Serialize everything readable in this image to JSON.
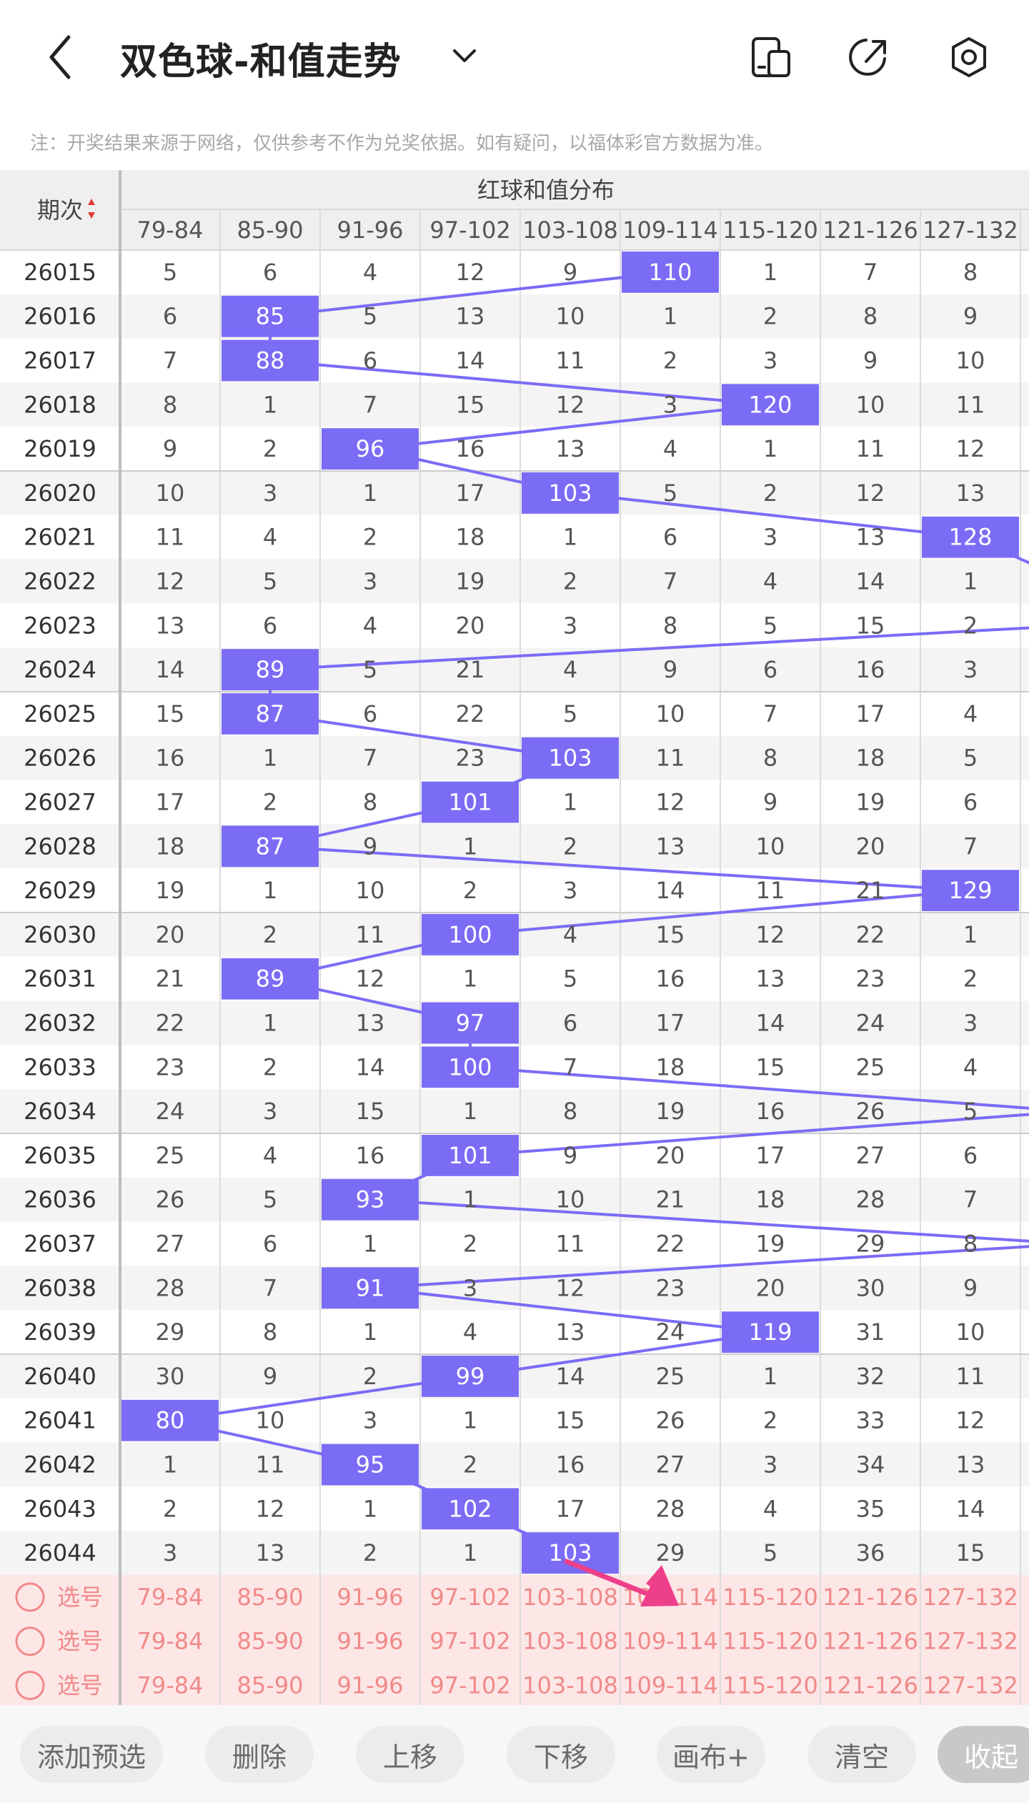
{
  "header": {
    "title": "双色球-和值走势"
  },
  "notice": "注：开奖结果来源于网络，仅供参考不作为兑奖依据。如有疑问，以福体彩官方数据为准。",
  "table": {
    "group_header": "红球和值分布",
    "period_header": "期次",
    "columns": [
      "79-84",
      "85-90",
      "91-96",
      "97-102",
      "103-108",
      "109-114",
      "115-120",
      "121-126",
      "127-132"
    ],
    "rows": [
      {
        "period": "26015",
        "hit": 5,
        "values": [
          5,
          6,
          4,
          12,
          9,
          110,
          1,
          7,
          8
        ]
      },
      {
        "period": "26016",
        "hit": 1,
        "values": [
          6,
          85,
          5,
          13,
          10,
          1,
          2,
          8,
          9
        ]
      },
      {
        "period": "26017",
        "hit": 1,
        "values": [
          7,
          88,
          6,
          14,
          11,
          2,
          3,
          9,
          10
        ]
      },
      {
        "period": "26018",
        "hit": 6,
        "values": [
          8,
          1,
          7,
          15,
          12,
          3,
          120,
          10,
          11
        ]
      },
      {
        "period": "26019",
        "hit": 2,
        "values": [
          9,
          2,
          96,
          16,
          13,
          4,
          1,
          11,
          12
        ]
      },
      {
        "period": "26020",
        "hit": 4,
        "values": [
          10,
          3,
          1,
          17,
          103,
          5,
          2,
          12,
          13
        ]
      },
      {
        "period": "26021",
        "hit": 8,
        "values": [
          11,
          4,
          2,
          18,
          1,
          6,
          3,
          13,
          128
        ]
      },
      {
        "period": "26022",
        "hit": null,
        "values": [
          12,
          5,
          3,
          19,
          2,
          7,
          4,
          14,
          1
        ]
      },
      {
        "period": "26023",
        "hit": null,
        "values": [
          13,
          6,
          4,
          20,
          3,
          8,
          5,
          15,
          2
        ]
      },
      {
        "period": "26024",
        "hit": 1,
        "values": [
          14,
          89,
          5,
          21,
          4,
          9,
          6,
          16,
          3
        ]
      },
      {
        "period": "26025",
        "hit": 1,
        "values": [
          15,
          87,
          6,
          22,
          5,
          10,
          7,
          17,
          4
        ]
      },
      {
        "period": "26026",
        "hit": 4,
        "values": [
          16,
          1,
          7,
          23,
          103,
          11,
          8,
          18,
          5
        ]
      },
      {
        "period": "26027",
        "hit": 3,
        "values": [
          17,
          2,
          8,
          101,
          1,
          12,
          9,
          19,
          6
        ]
      },
      {
        "period": "26028",
        "hit": 1,
        "values": [
          18,
          87,
          9,
          1,
          2,
          13,
          10,
          20,
          7
        ]
      },
      {
        "period": "26029",
        "hit": 8,
        "values": [
          19,
          1,
          10,
          2,
          3,
          14,
          11,
          21,
          129
        ]
      },
      {
        "period": "26030",
        "hit": 3,
        "values": [
          20,
          2,
          11,
          100,
          4,
          15,
          12,
          22,
          1
        ]
      },
      {
        "period": "26031",
        "hit": 1,
        "values": [
          21,
          89,
          12,
          1,
          5,
          16,
          13,
          23,
          2
        ]
      },
      {
        "period": "26032",
        "hit": 3,
        "values": [
          22,
          1,
          13,
          97,
          6,
          17,
          14,
          24,
          3
        ]
      },
      {
        "period": "26033",
        "hit": 3,
        "values": [
          23,
          2,
          14,
          100,
          7,
          18,
          15,
          25,
          4
        ]
      },
      {
        "period": "26034",
        "hit": null,
        "values": [
          24,
          3,
          15,
          1,
          8,
          19,
          16,
          26,
          5
        ]
      },
      {
        "period": "26035",
        "hit": 3,
        "values": [
          25,
          4,
          16,
          101,
          9,
          20,
          17,
          27,
          6
        ]
      },
      {
        "period": "26036",
        "hit": 2,
        "values": [
          26,
          5,
          93,
          1,
          10,
          21,
          18,
          28,
          7
        ]
      },
      {
        "period": "26037",
        "hit": null,
        "values": [
          27,
          6,
          1,
          2,
          11,
          22,
          19,
          29,
          8
        ]
      },
      {
        "period": "26038",
        "hit": 2,
        "values": [
          28,
          7,
          91,
          3,
          12,
          23,
          20,
          30,
          9
        ]
      },
      {
        "period": "26039",
        "hit": 6,
        "values": [
          29,
          8,
          1,
          4,
          13,
          24,
          119,
          31,
          10
        ]
      },
      {
        "period": "26040",
        "hit": 3,
        "values": [
          30,
          9,
          2,
          99,
          14,
          25,
          1,
          32,
          11
        ]
      },
      {
        "period": "26041",
        "hit": 0,
        "values": [
          80,
          10,
          3,
          1,
          15,
          26,
          2,
          33,
          12
        ]
      },
      {
        "period": "26042",
        "hit": 2,
        "values": [
          1,
          11,
          95,
          2,
          16,
          27,
          3,
          34,
          13
        ]
      },
      {
        "period": "26043",
        "hit": 3,
        "values": [
          2,
          12,
          1,
          102,
          17,
          28,
          4,
          35,
          14
        ]
      },
      {
        "period": "26044",
        "hit": 4,
        "values": [
          3,
          13,
          2,
          1,
          103,
          29,
          5,
          36,
          15
        ]
      }
    ],
    "select_label": "选号",
    "select_rows": 3
  },
  "toolbar": {
    "buttons": [
      "添加预选",
      "删除",
      "上移",
      "下移",
      "画布+",
      "清空",
      "收起"
    ]
  },
  "colors": {
    "hit": "#7b6cf6",
    "line": "#7b6cf6",
    "select_bg": "#fde6e6",
    "select_text": "#f08a8a",
    "period_arrow_up": "#e53935",
    "period_arrow_down": "#e53935",
    "arrow": "#ee3f8a"
  }
}
